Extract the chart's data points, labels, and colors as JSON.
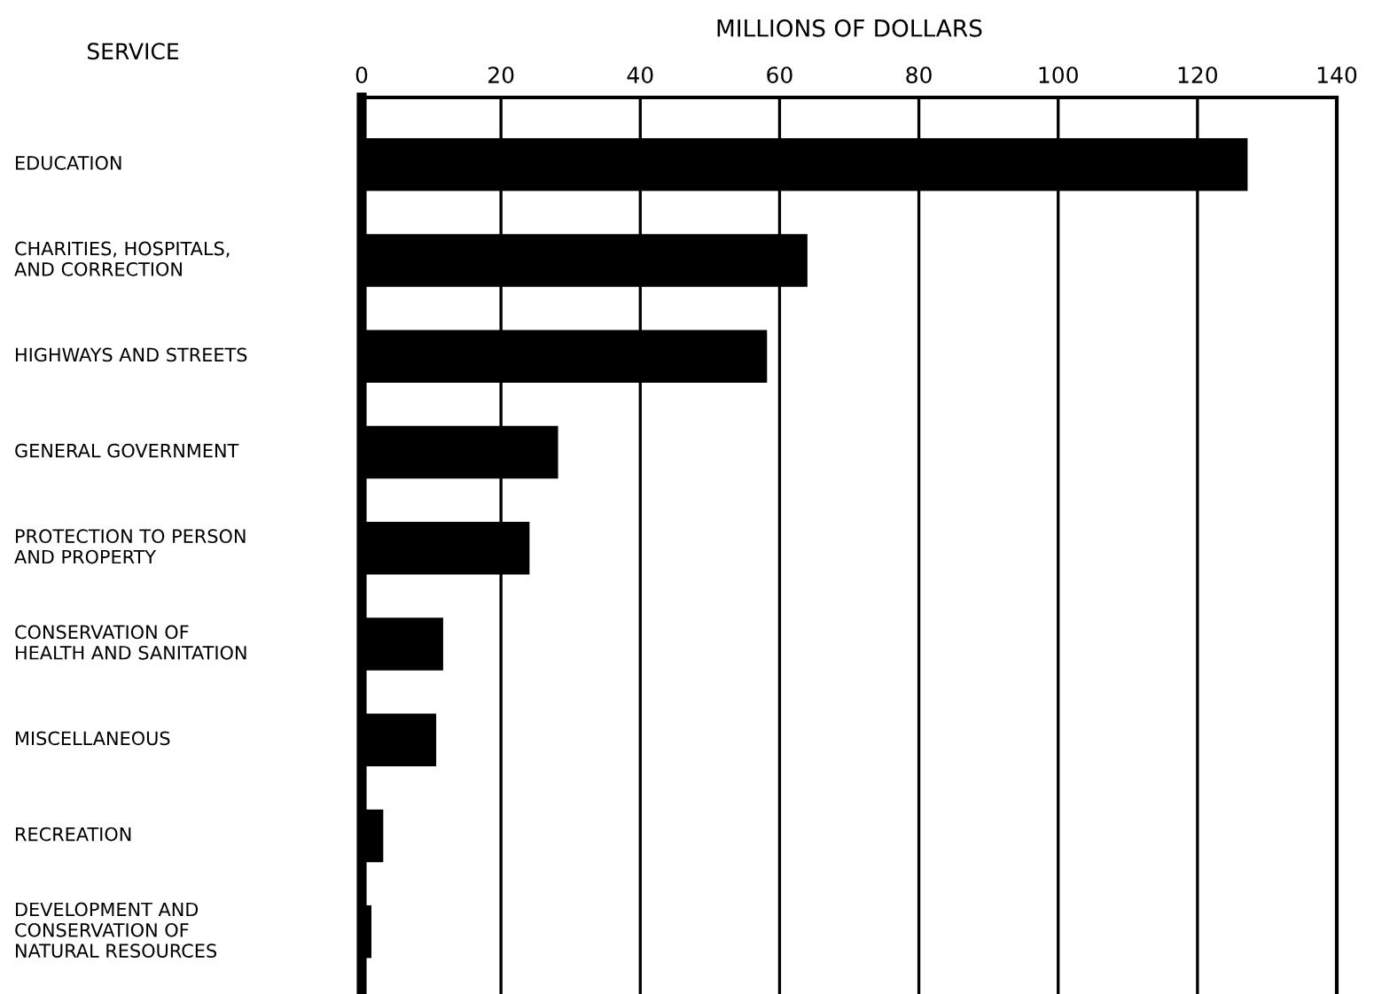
{
  "chart_data": {
    "type": "bar",
    "orientation": "horizontal",
    "xlabel": "MILLIONS OF DOLLARS",
    "ylabel": "SERVICE",
    "categories": [
      "EDUCATION",
      "CHARITIES, HOSPITALS,\nAND CORRECTION",
      "HIGHWAYS AND STREETS",
      "GENERAL GOVERNMENT",
      "PROTECTION TO PERSON\nAND PROPERTY",
      "CONSERVATION OF\nHEALTH AND SANITATION",
      "MISCELLANEOUS",
      "RECREATION",
      "DEVELOPMENT AND\nCONSERVATION OF\nNATURAL RESOURCES"
    ],
    "values": [
      127.2,
      64.0,
      58.2,
      28.2,
      24.1,
      11.7,
      10.7,
      3.1,
      1.4
    ],
    "color": "#000000",
    "xlim": [
      0,
      140
    ],
    "xticks": [
      0,
      20,
      40,
      60,
      80,
      100,
      120,
      140
    ],
    "grid": "x"
  }
}
